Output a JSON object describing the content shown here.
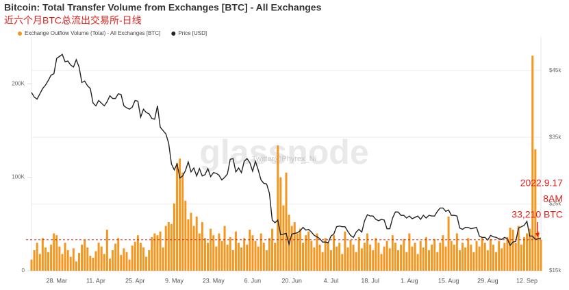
{
  "chart_data": {
    "type": "bar",
    "title": "Bitcoin: Total Transfer Volume from Exchanges [BTC] - All Exchanges",
    "subtitle": "近六个月BTC总流出交易所-日线",
    "watermark": [
      "glassnode",
      "Twitter@Phyrex_Ni"
    ],
    "annotations": [
      "2022.9.17",
      "8AM",
      "33,210 BTC"
    ],
    "categories": [
      null,
      null,
      null,
      null,
      null,
      null,
      null,
      null,
      null,
      "28. Mar",
      null,
      null,
      null,
      null,
      null,
      null,
      null,
      null,
      null,
      null,
      null,
      null,
      null,
      "11. Apr",
      null,
      null,
      null,
      null,
      null,
      null,
      null,
      null,
      null,
      null,
      null,
      null,
      null,
      "25. Apr",
      null,
      null,
      null,
      null,
      null,
      null,
      null,
      null,
      null,
      null,
      null,
      null,
      null,
      "9. May",
      null,
      null,
      null,
      null,
      null,
      null,
      null,
      null,
      null,
      null,
      null,
      null,
      null,
      "23. May",
      null,
      null,
      null,
      null,
      null,
      null,
      null,
      null,
      null,
      null,
      null,
      null,
      null,
      "6. Jun",
      null,
      null,
      null,
      null,
      null,
      null,
      null,
      null,
      null,
      null,
      null,
      null,
      null,
      "20. Jun",
      null,
      null,
      null,
      null,
      null,
      null,
      null,
      null,
      null,
      null,
      null,
      null,
      null,
      "4. Jul",
      null,
      null,
      null,
      null,
      null,
      null,
      null,
      null,
      null,
      null,
      null,
      null,
      null,
      "18. Jul",
      null,
      null,
      null,
      null,
      null,
      null,
      null,
      null,
      null,
      null,
      null,
      null,
      null,
      "1. Aug",
      null,
      null,
      null,
      null,
      null,
      null,
      null,
      null,
      null,
      null,
      null,
      null,
      null,
      "15. Aug",
      null,
      null,
      null,
      null,
      null,
      null,
      null,
      null,
      null,
      null,
      null,
      null,
      null,
      "29. Aug",
      null,
      null,
      null,
      null,
      null,
      null,
      null,
      null,
      null,
      null,
      null,
      null,
      null,
      "12. Sep",
      null,
      null,
      null,
      null,
      null
    ],
    "series": [
      {
        "name": "Exchange Outflow Volume (Total) - All Exchanges [BTC]",
        "type": "bar",
        "color": "#f5961f",
        "values": [
          12000,
          22000,
          30000,
          18000,
          35000,
          25000,
          20000,
          28000,
          40000,
          38000,
          26000,
          18000,
          30000,
          22000,
          15000,
          24000,
          10000,
          19000,
          28000,
          33000,
          25000,
          16000,
          14000,
          21000,
          30000,
          26000,
          18000,
          44000,
          13000,
          22000,
          29000,
          35000,
          17000,
          24000,
          20000,
          12000,
          27000,
          31000,
          38000,
          30000,
          25000,
          15000,
          22000,
          36000,
          40000,
          38000,
          42000,
          25000,
          48000,
          52000,
          50000,
          72000,
          115000,
          120000,
          105000,
          75000,
          55000,
          62000,
          48000,
          58000,
          40000,
          52000,
          35000,
          30000,
          45000,
          38000,
          26000,
          40000,
          32000,
          48000,
          28000,
          36000,
          22000,
          42000,
          30000,
          25000,
          35000,
          28000,
          44000,
          38000,
          32000,
          26000,
          40000,
          30000,
          22000,
          35000,
          45000,
          30000,
          134000,
          100000,
          70000,
          105000,
          60000,
          48000,
          52000,
          40000,
          45000,
          30000,
          38000,
          42000,
          32000,
          25000,
          40000,
          28000,
          20000,
          35000,
          30000,
          22000,
          38000,
          26000,
          30000,
          18000,
          42000,
          25000,
          33000,
          28000,
          20000,
          36000,
          24000,
          30000,
          40000,
          28000,
          22000,
          35000,
          30000,
          18000,
          26000,
          32000,
          24000,
          38000,
          30000,
          22000,
          28000,
          34000,
          20000,
          40000,
          26000,
          30000,
          18000,
          32000,
          25000,
          36000,
          22000,
          28000,
          34000,
          20000,
          30000,
          38000,
          26000,
          58000,
          32000,
          28000,
          40000,
          22000,
          30000,
          25000,
          35000,
          28000,
          20000,
          32000,
          26000,
          36000,
          30000,
          22000,
          34000,
          28000,
          20000,
          32000,
          24000,
          30000,
          36000,
          46000,
          44000,
          30000,
          48000,
          28000,
          36000,
          40000,
          45000,
          230000,
          130000,
          42000,
          33210
        ]
      },
      {
        "name": "Price [USD]",
        "type": "line",
        "axis": "y2",
        "color": "#222222",
        "values": [
          41700,
          41000,
          40700,
          41500,
          42300,
          42800,
          43500,
          44300,
          44500,
          46800,
          47100,
          47400,
          46300,
          46400,
          45800,
          45500,
          46600,
          45500,
          43200,
          43400,
          42700,
          42300,
          40100,
          39700,
          40500,
          40100,
          39700,
          40300,
          41200,
          40800,
          40800,
          41500,
          41400,
          39700,
          39400,
          39200,
          39500,
          40500,
          40400,
          38000,
          39200,
          38700,
          38500,
          37800,
          37700,
          39700,
          36500,
          36000,
          35500,
          34100,
          31000,
          30100,
          31000,
          28900,
          29200,
          30000,
          31300,
          29800,
          30400,
          29200,
          30300,
          29200,
          29400,
          30300,
          29100,
          29700,
          29600,
          29300,
          28600,
          29000,
          29500,
          31700,
          31800,
          29800,
          30400,
          29700,
          31400,
          31800,
          31200,
          29900,
          31400,
          30100,
          28600,
          28100,
          28000,
          26600,
          22600,
          22200,
          22600,
          20400,
          20500,
          20600,
          19000,
          20500,
          20600,
          20700,
          21000,
          21500,
          21100,
          21200,
          20800,
          20300,
          20100,
          19800,
          19300,
          19300,
          19200,
          20200,
          20500,
          21600,
          21700,
          21600,
          21600,
          20900,
          20300,
          20000,
          20800,
          21200,
          20800,
          22500,
          23400,
          23200,
          23200,
          22700,
          22500,
          22700,
          22600,
          21300,
          21300,
          22900,
          23800,
          23800,
          23300,
          23300,
          22900,
          23200,
          22800,
          23000,
          23200,
          22700,
          23300,
          22900,
          23300,
          23200,
          23200,
          23900,
          24400,
          24400,
          23900,
          24100,
          23300,
          23300,
          23200,
          21400,
          21200,
          21500,
          21500,
          21300,
          21400,
          21500,
          20200,
          20000,
          20000,
          19600,
          20300,
          20100,
          20000,
          19800,
          19700,
          20000,
          19800,
          18800,
          19300,
          19400,
          21400,
          21600,
          21800,
          22400,
          20200,
          20200,
          19700,
          19800,
          19900
        ]
      }
    ],
    "ylim": [
      0,
      250000
    ],
    "yticks": [
      0,
      {
        "value": 100000,
        "label": "100K"
      },
      {
        "value": 200000,
        "label": "200K"
      }
    ],
    "y2lim": [
      15000,
      50000
    ],
    "y2ticks": [
      {
        "value": 15000,
        "label": "$15k"
      },
      {
        "value": 25000,
        "label": "$25k"
      },
      {
        "value": 35000,
        "label": "$35k"
      },
      {
        "value": 45000,
        "label": "$45k"
      }
    ],
    "grid": true,
    "legend": "top-left"
  }
}
